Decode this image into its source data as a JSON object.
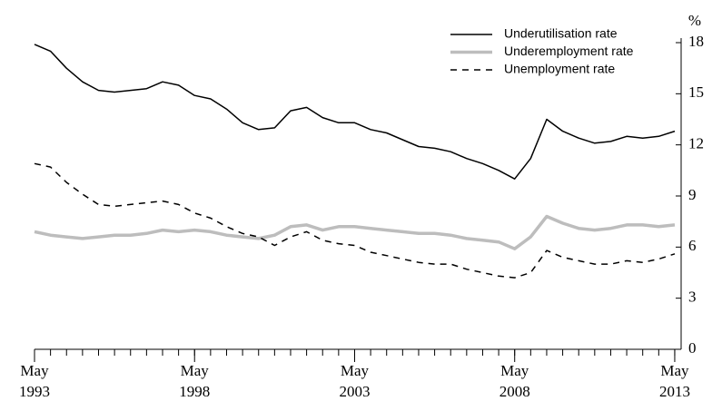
{
  "chart_data": {
    "type": "line",
    "x": [
      1993.33,
      1993.83,
      1994.33,
      1994.83,
      1995.33,
      1995.83,
      1996.33,
      1996.83,
      1997.33,
      1997.83,
      1998.33,
      1998.83,
      1999.33,
      1999.83,
      2000.33,
      2000.83,
      2001.33,
      2001.83,
      2002.33,
      2002.83,
      2003.33,
      2003.83,
      2004.33,
      2004.83,
      2005.33,
      2005.83,
      2006.33,
      2006.83,
      2007.33,
      2007.83,
      2008.33,
      2008.83,
      2009.33,
      2009.83,
      2010.33,
      2010.83,
      2011.33,
      2011.83,
      2012.33,
      2012.83,
      2013.33
    ],
    "series": [
      {
        "name": "Underutilisation rate",
        "color": "#000000",
        "line_style": "solid",
        "width": 1.5,
        "values": [
          17.9,
          17.5,
          16.5,
          15.7,
          15.2,
          15.1,
          15.2,
          15.3,
          15.7,
          15.5,
          14.9,
          14.7,
          14.1,
          13.3,
          12.9,
          13.0,
          14.0,
          14.2,
          13.6,
          13.3,
          13.3,
          12.9,
          12.7,
          12.3,
          11.9,
          11.8,
          11.6,
          11.2,
          10.9,
          10.5,
          10.0,
          11.2,
          13.5,
          12.8,
          12.4,
          12.1,
          12.2,
          12.5,
          12.4,
          12.5,
          12.8
        ]
      },
      {
        "name": "Underemployment rate",
        "color": "#bdbdbd",
        "line_style": "solid",
        "width": 3.5,
        "values": [
          6.9,
          6.7,
          6.6,
          6.5,
          6.6,
          6.7,
          6.7,
          6.8,
          7.0,
          6.9,
          7.0,
          6.9,
          6.7,
          6.6,
          6.5,
          6.7,
          7.2,
          7.3,
          7.0,
          7.2,
          7.2,
          7.1,
          7.0,
          6.9,
          6.8,
          6.8,
          6.7,
          6.5,
          6.4,
          6.3,
          5.9,
          6.6,
          7.8,
          7.4,
          7.1,
          7.0,
          7.1,
          7.3,
          7.3,
          7.2,
          7.3
        ]
      },
      {
        "name": "Unemployment rate",
        "color": "#000000",
        "line_style": "dashed",
        "width": 1.5,
        "values": [
          10.9,
          10.7,
          9.8,
          9.1,
          8.5,
          8.4,
          8.5,
          8.6,
          8.7,
          8.5,
          8.0,
          7.7,
          7.2,
          6.8,
          6.6,
          6.1,
          6.6,
          6.9,
          6.4,
          6.2,
          6.1,
          5.7,
          5.5,
          5.3,
          5.1,
          5.0,
          5.0,
          4.7,
          4.5,
          4.3,
          4.2,
          4.5,
          5.8,
          5.4,
          5.2,
          5.0,
          5.0,
          5.2,
          5.1,
          5.3,
          5.6
        ]
      }
    ],
    "xlim": [
      1993.33,
      2013.53
    ],
    "xticks": [
      {
        "value": 1993.33,
        "label": "May 1993"
      },
      {
        "value": 1998.33,
        "label": "May 1998"
      },
      {
        "value": 2003.33,
        "label": "May 2003"
      },
      {
        "value": 2008.33,
        "label": "May 2008"
      },
      {
        "value": 2013.33,
        "label": "May 2013"
      }
    ],
    "ylim": [
      0,
      18
    ],
    "yticks": [
      0,
      3,
      6,
      9,
      12,
      15,
      18
    ],
    "y_unit": "%",
    "legend": "top-right"
  }
}
